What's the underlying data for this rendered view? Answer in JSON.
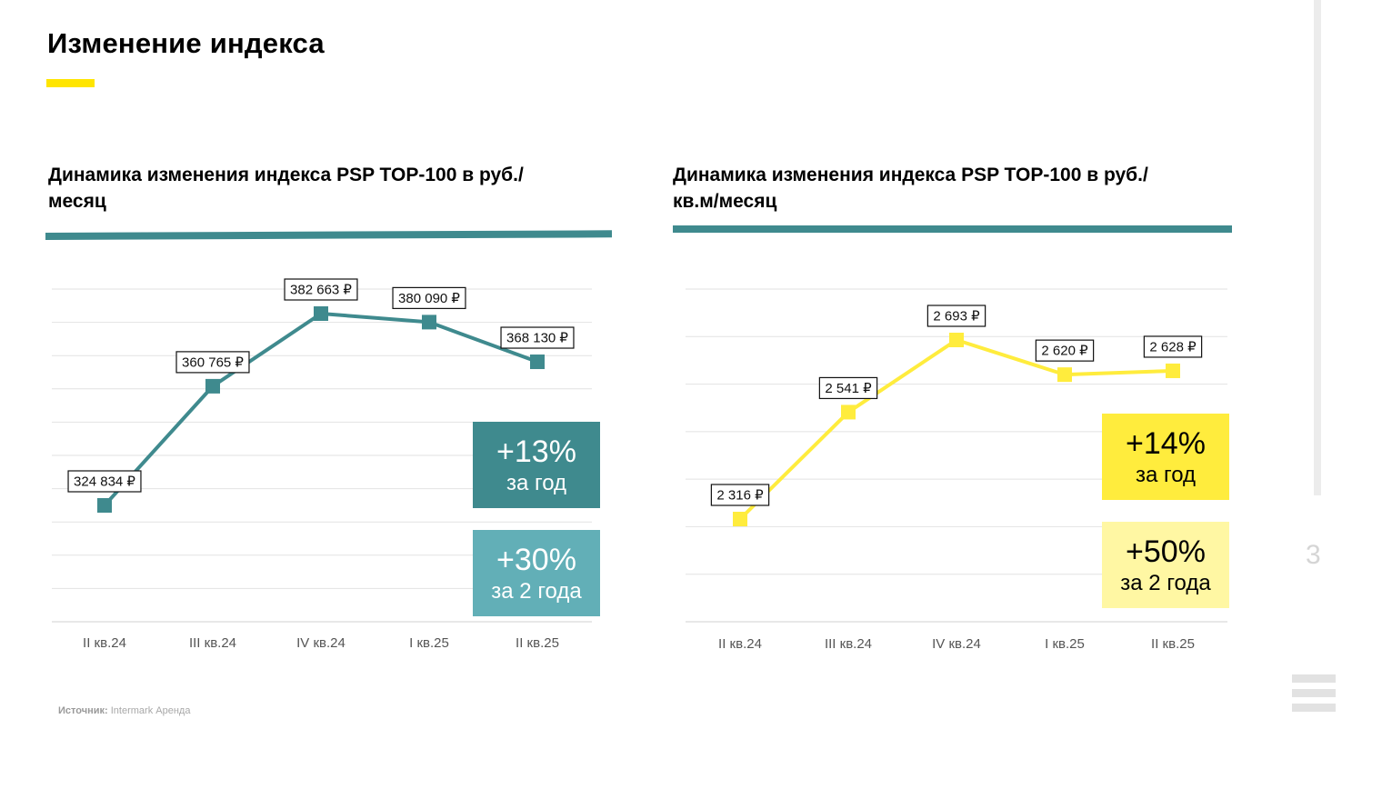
{
  "page": {
    "title": "Изменение индекса",
    "page_number": "3",
    "source_label": "Источник:",
    "source_value": "Intermark Аренда"
  },
  "colors": {
    "accent_yellow": "#FFE500",
    "teal_dark": "#3F8A8E",
    "teal_light": "#62AFB7",
    "yellow_line": "#FFEC3D",
    "yellow_light": "#FFF7A3"
  },
  "chart_data": [
    {
      "type": "line",
      "title": "Динамика изменения индекса PSP TOP-100 в руб./месяц",
      "categories": [
        "II кв.24",
        "III кв.24",
        "IV кв.24",
        "I кв.25",
        "II кв.25"
      ],
      "series": [
        {
          "values": [
            324834,
            360765,
            382663,
            380090,
            368130
          ]
        }
      ],
      "data_labels": [
        "324 834 ₽",
        "360 765 ₽",
        "382 663 ₽",
        "380 090 ₽",
        "368 130 ₽"
      ],
      "ylim": [
        300000,
        390000
      ],
      "grid": true,
      "badges": [
        {
          "pct": "+13%",
          "label": "за год"
        },
        {
          "pct": "+30%",
          "label": "за 2 года"
        }
      ]
    },
    {
      "type": "line",
      "title": "Динамика изменения индекса PSP TOP-100 в руб./кв.м/месяц",
      "categories": [
        "II кв.24",
        "III кв.24",
        "IV кв.24",
        "I кв.25",
        "II кв.25"
      ],
      "series": [
        {
          "values": [
            2316,
            2541,
            2693,
            2620,
            2628
          ]
        }
      ],
      "data_labels": [
        "2 316 ₽",
        "2 541 ₽",
        "2 693 ₽",
        "2 620 ₽",
        "2 628 ₽"
      ],
      "ylim": [
        2100,
        2800
      ],
      "grid": true,
      "badges": [
        {
          "pct": "+14%",
          "label": "за год"
        },
        {
          "pct": "+50%",
          "label": "за 2 года"
        }
      ]
    }
  ]
}
